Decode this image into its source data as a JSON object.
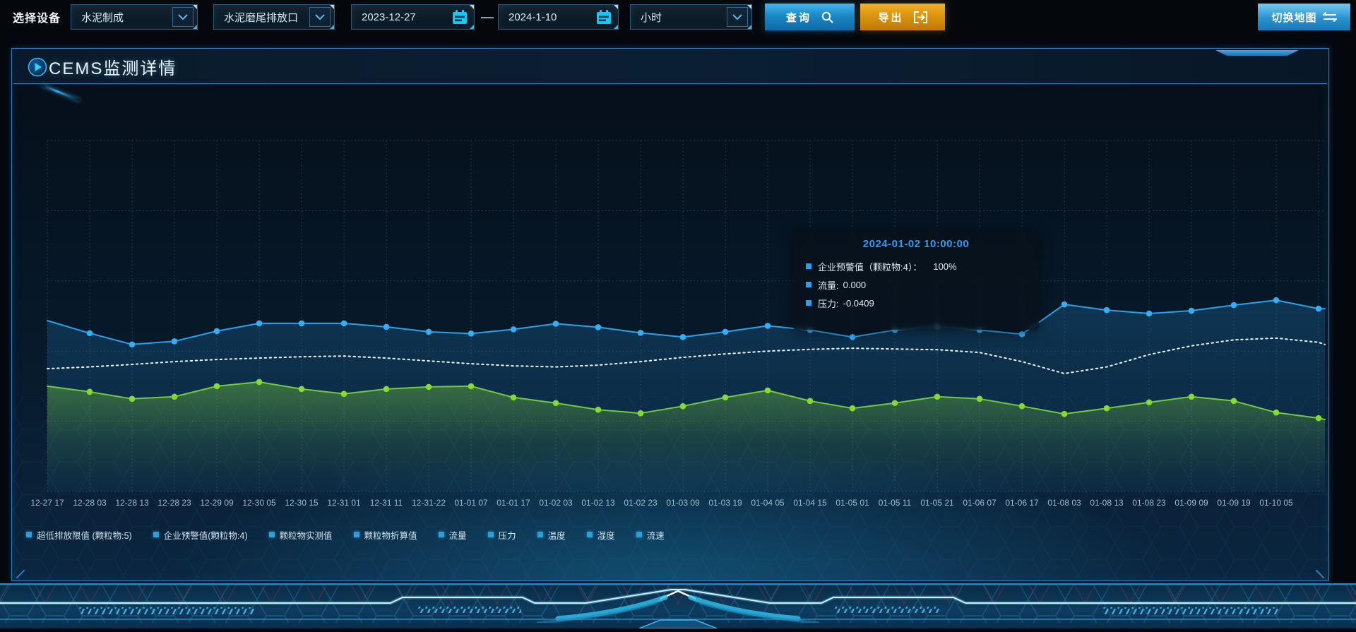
{
  "toolbar": {
    "label": "选择设备",
    "device_select": {
      "value": "水泥制成"
    },
    "outlet_select": {
      "value": "水泥磨尾排放口"
    },
    "date_start": "2023-12-27",
    "date_separator": "—",
    "date_end": "2024-1-10",
    "interval_select": {
      "value": "小时"
    },
    "query_button": "查询",
    "export_button": "导出",
    "switch_map_button": "切换地图"
  },
  "panel": {
    "title": "CEMS监测详情"
  },
  "tooltip": {
    "title": "2024-01-02 10:00:00",
    "marker_color": "#2f9bf0",
    "rows": [
      {
        "label": "企业预警值（颗粒物:4）：",
        "value": "100%"
      },
      {
        "label": "流量:",
        "value": "0.000"
      },
      {
        "label": "压力:",
        "value": "-0.0409"
      }
    ]
  },
  "chart_data": {
    "type": "line",
    "title": "",
    "x_labels": [
      "12-27 17",
      "12-28 03",
      "12-28 13",
      "12-28 23",
      "12-29 09",
      "12-30 05",
      "12-30 15",
      "12-31 01",
      "12-31 11",
      "12-31-22",
      "01-01 07",
      "01-01 17",
      "01-02 03",
      "01-02 13",
      "01-02 23",
      "01-03 09",
      "01-03 19",
      "01-04 05",
      "01-04 15",
      "01-05 01",
      "01-05 11",
      "01-05 21",
      "01-06 07",
      "01-06 17",
      "01-08 03",
      "01-08 13",
      "01-08 23",
      "01-09 09",
      "01-09 19",
      "01-10 05"
    ],
    "y_axis": {
      "visible": false,
      "note": "no y-axis tick labels shown; series values are fractions of plot height (0 = bottom, 1 = top)"
    },
    "grid": {
      "shown": true,
      "style": "dashed"
    },
    "legend": {
      "position": "bottom-left",
      "marker_color": "#2b9fd8",
      "items": [
        "超低排放限值 (颗粒物:5)",
        "企业预警值(颗粒物:4)",
        "颗粒物实测值",
        "颗粒物折算值",
        "流量",
        "压力",
        "温度",
        "湿度",
        "流速"
      ]
    },
    "series": [
      {
        "name": "压力",
        "color": "#2aa2ea",
        "marker_fill": "#35aef5",
        "style": "solid",
        "markers": true,
        "area": true,
        "values": [
          0.487,
          0.451,
          0.419,
          0.428,
          0.457,
          0.479,
          0.479,
          0.479,
          0.469,
          0.455,
          0.45,
          0.462,
          0.478,
          0.468,
          0.452,
          0.44,
          0.455,
          0.472,
          0.46,
          0.44,
          0.46,
          0.47,
          0.46,
          0.448,
          0.533,
          0.517,
          0.507,
          0.515,
          0.531,
          0.545,
          0.521,
          0.521
        ]
      },
      {
        "name": "企业预警值(颗粒物:4)",
        "color": "#edf5f9",
        "style": "dotted",
        "markers": false,
        "area": false,
        "values": [
          0.35,
          0.355,
          0.362,
          0.37,
          0.376,
          0.38,
          0.384,
          0.386,
          0.38,
          0.372,
          0.364,
          0.358,
          0.355,
          0.36,
          0.37,
          0.382,
          0.392,
          0.4,
          0.405,
          0.408,
          0.406,
          0.404,
          0.396,
          0.37,
          0.336,
          0.355,
          0.39,
          0.415,
          0.432,
          0.437,
          0.425,
          0.419
        ]
      },
      {
        "name": "流量",
        "color": "#74c93e",
        "marker_fill": "#82dd30",
        "style": "solid",
        "markers": true,
        "area": true,
        "values": [
          0.3,
          0.284,
          0.264,
          0.27,
          0.3,
          0.312,
          0.292,
          0.278,
          0.292,
          0.298,
          0.3,
          0.268,
          0.252,
          0.233,
          0.223,
          0.243,
          0.268,
          0.288,
          0.258,
          0.237,
          0.252,
          0.27,
          0.264,
          0.243,
          0.221,
          0.237,
          0.254,
          0.27,
          0.258,
          0.225,
          0.209,
          0.205
        ]
      }
    ]
  },
  "colors": {
    "accent_blue": "#2aa2ea",
    "accent_green": "#74c93e",
    "accent_cyan": "#14c8f4",
    "accent_orange": "#d68f0d",
    "panel_border": "#2d7fc4",
    "grid_line": "rgba(150,190,210,0.22)",
    "x_label": "#9dbccd"
  }
}
